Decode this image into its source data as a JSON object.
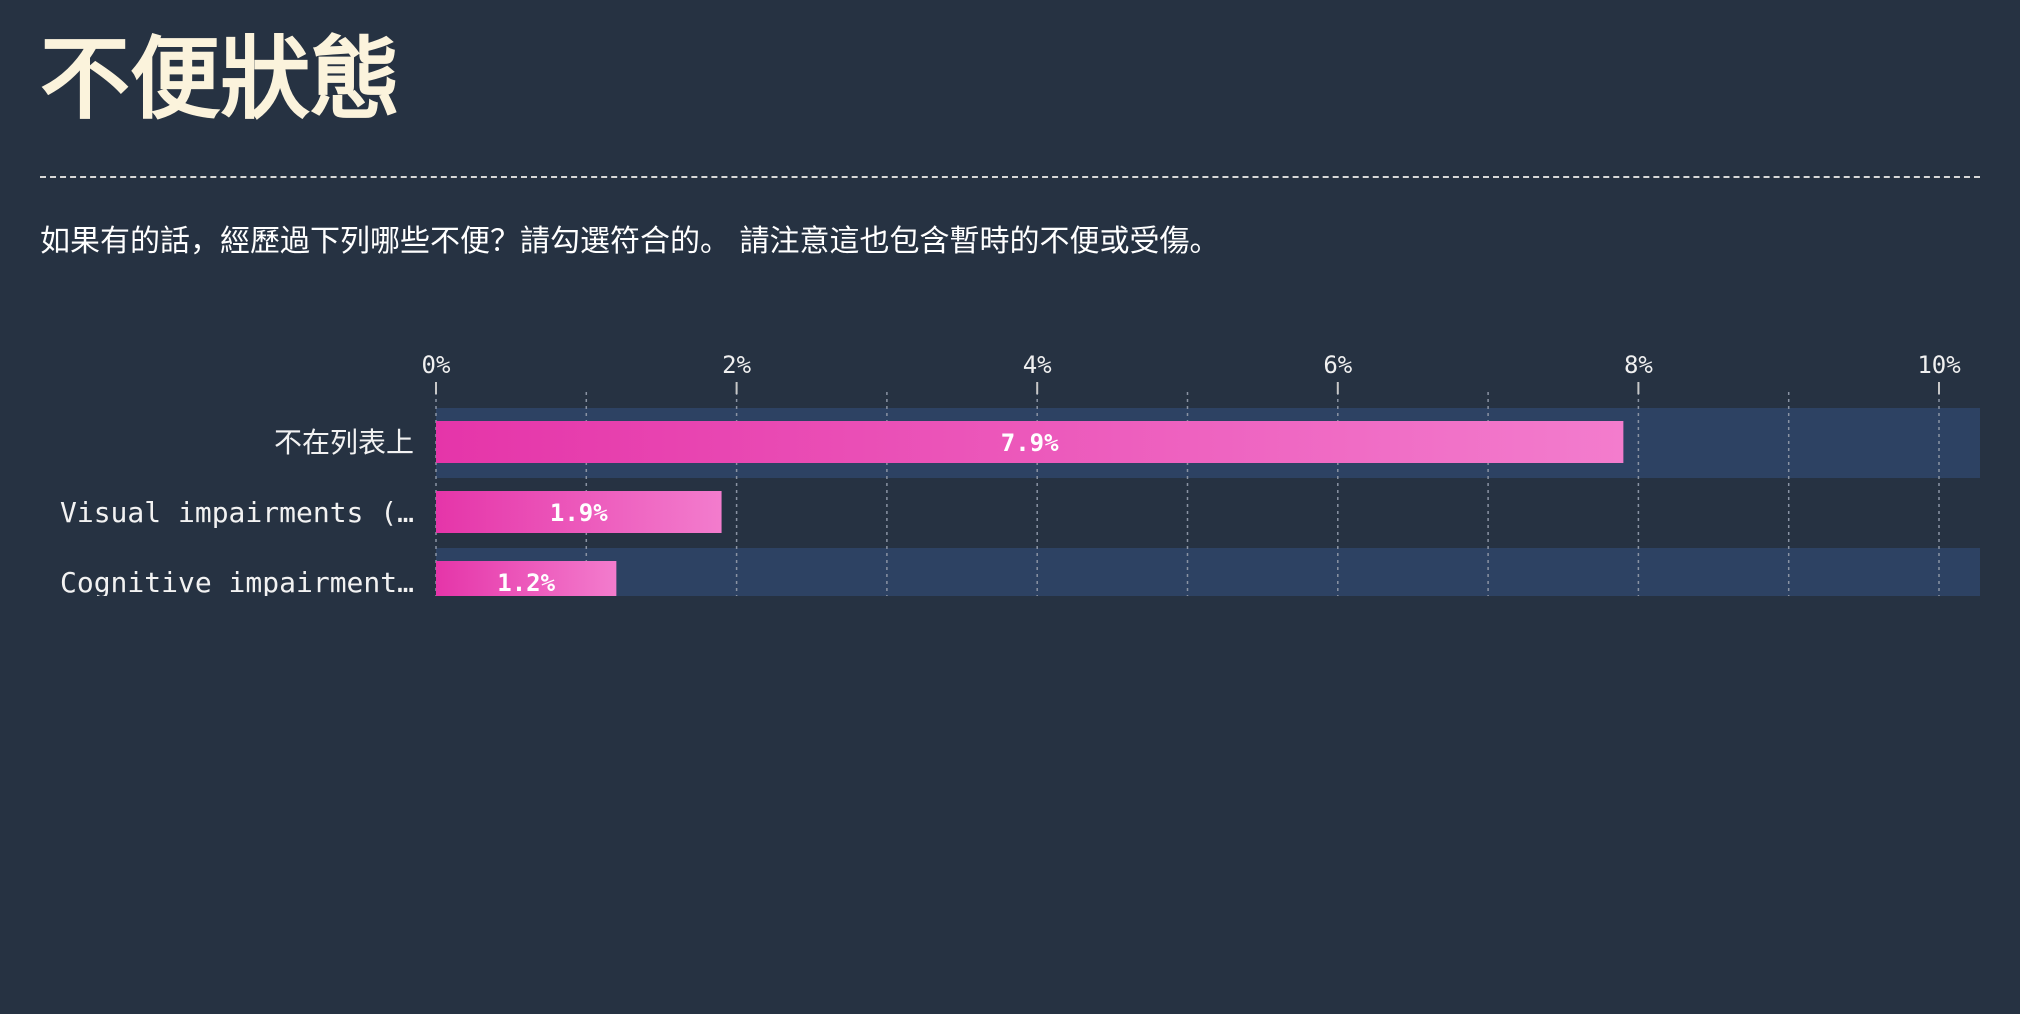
{
  "page": {
    "title": "不便狀態",
    "question": "如果有的話，經歷過下列哪些不便？請勾選符合的。 請注意這也包含暫時的不便或受傷。"
  },
  "colors": {
    "background": "#263242",
    "bar_start": "#e535a9",
    "bar_end": "#f37ccd",
    "row_highlight": "#2d4263",
    "grid": "#8a93a3"
  },
  "chart_data": {
    "type": "bar",
    "orientation": "horizontal",
    "categories": [
      "不在列表上",
      "Visual impairments (…",
      "Cognitive impairment…"
    ],
    "values": [
      7.9,
      1.9,
      1.2
    ],
    "value_labels": [
      "7.9%",
      "1.9%",
      "1.2%"
    ],
    "xlim": [
      0,
      10.3
    ],
    "x_ticks": [
      0,
      2,
      4,
      6,
      8,
      10
    ],
    "x_tick_labels": [
      "0%",
      "2%",
      "4%",
      "6%",
      "8%",
      "10%"
    ],
    "minor_grid": true,
    "grid": true
  }
}
